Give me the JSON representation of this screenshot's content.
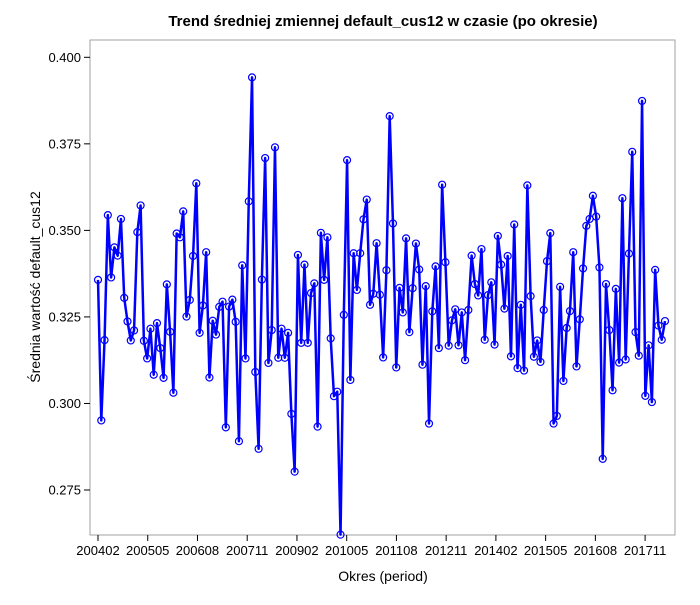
{
  "chart_data": {
    "type": "line",
    "title": "Trend średniej zmiennej default_cus12 w czasie (po okresie)",
    "xlabel": "Okres (period)",
    "ylabel": "Średnia wartość default_cus12",
    "x_tick_labels": [
      "200402",
      "200505",
      "200608",
      "200711",
      "200902",
      "201005",
      "201108",
      "201211",
      "201402",
      "201505",
      "201608",
      "201711"
    ],
    "y_ticks": [
      0.275,
      0.3,
      0.325,
      0.35,
      0.375,
      0.4
    ],
    "y_tick_labels": [
      "0.275",
      "0.300",
      "0.325",
      "0.350",
      "0.375",
      "0.400"
    ],
    "ylim": [
      0.262,
      0.405
    ],
    "line_color": "#0000ff",
    "marker": "open-circle",
    "grid": false,
    "series": [
      {
        "values": [
          0.3357,
          0.2951,
          0.3183,
          0.3544,
          0.3364,
          0.3451,
          0.3427,
          0.3533,
          0.3305,
          0.3237,
          0.3182,
          0.3211,
          0.3495,
          0.3572,
          0.3181,
          0.313,
          0.3216,
          0.3083,
          0.3232,
          0.316,
          0.3074,
          0.3344,
          0.3207,
          0.3031,
          0.3491,
          0.348,
          0.3555,
          0.3251,
          0.3299,
          0.3426,
          0.3636,
          0.3204,
          0.3283,
          0.3437,
          0.3075,
          0.3239,
          0.3199,
          0.3279,
          0.3294,
          0.2931,
          0.328,
          0.33,
          0.3236,
          0.2891,
          0.3399,
          0.313,
          0.3584,
          0.3942,
          0.3091,
          0.2869,
          0.3358,
          0.3709,
          0.3117,
          0.3212,
          0.374,
          0.3132,
          0.3216,
          0.3132,
          0.3204,
          0.297,
          0.2803,
          0.3429,
          0.3175,
          0.3401,
          0.3175,
          0.3319,
          0.3347,
          0.2933,
          0.3493,
          0.3357,
          0.348,
          0.3188,
          0.3021,
          0.3034,
          0.2621,
          0.3256,
          0.3703,
          0.3068,
          0.3434,
          0.3328,
          0.3434,
          0.3532,
          0.3589,
          0.3285,
          0.3317,
          0.3463,
          0.3314,
          0.3133,
          0.3385,
          0.383,
          0.352,
          0.3104,
          0.3334,
          0.3263,
          0.3477,
          0.3206,
          0.3333,
          0.3462,
          0.3387,
          0.3112,
          0.3339,
          0.2942,
          0.3266,
          0.3396,
          0.316,
          0.3632,
          0.3408,
          0.3167,
          0.324,
          0.3272,
          0.3168,
          0.3263,
          0.3125,
          0.327,
          0.3427,
          0.3345,
          0.3312,
          0.3446,
          0.3184,
          0.3313,
          0.335,
          0.317,
          0.3484,
          0.3401,
          0.3274,
          0.3426,
          0.3136,
          0.3517,
          0.3102,
          0.3285,
          0.3095,
          0.363,
          0.331,
          0.3135,
          0.3182,
          0.312,
          0.327,
          0.3411,
          0.3492,
          0.2942,
          0.2964,
          0.3337,
          0.3065,
          0.3218,
          0.3267,
          0.3437,
          0.3107,
          0.3243,
          0.339,
          0.3513,
          0.3533,
          0.36,
          0.354,
          0.3393,
          0.284,
          0.3345,
          0.3212,
          0.3038,
          0.3331,
          0.3118,
          0.3593,
          0.3127,
          0.3433,
          0.3727,
          0.3206,
          0.3138,
          0.3874,
          0.3022,
          0.3168,
          0.3004,
          0.3386,
          0.3225,
          0.3184,
          0.3238
        ]
      }
    ]
  }
}
